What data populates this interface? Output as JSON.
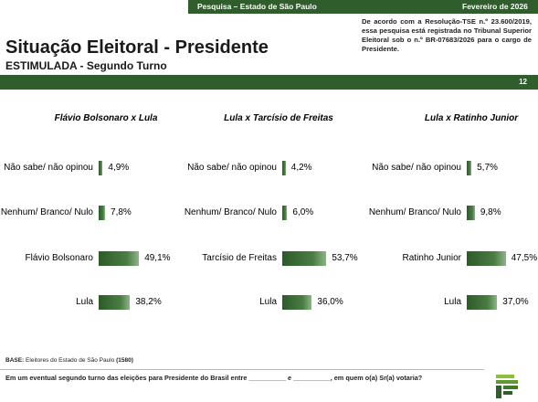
{
  "header": {
    "left": "Pesquisa – Estado de São Paulo",
    "right": "Fevereiro de 2026"
  },
  "disclaimer": "De acordo com a Resolução-TSE n.º 23.600/2019, essa pesquisa está registrada no Tribunal Superior Eleitoral sob o n.º BR-07683/2026 para o cargo de Presidente.",
  "title": "Situação Eleitoral - Presidente",
  "subtitle": "ESTIMULADA - Segundo Turno",
  "page_number": "12",
  "base": {
    "label": "BASE:",
    "text": "Eleitores do Estado de São Paulo",
    "count": "(1580)"
  },
  "question": "Em um eventual segundo turno das eleições para Presidente do Brasil entre __________ e __________, em quem o(a) Sr(a) votaria?",
  "colors": {
    "primary_green": "#2f5d2b"
  },
  "chart_data": [
    {
      "type": "bar",
      "title": "Flávio Bolsonaro x Lula",
      "categories": [
        "Não sabe/ não opinou",
        "Nenhum/ Branco/ Nulo",
        "Flávio Bolsonaro",
        "Lula"
      ],
      "values": [
        4.9,
        7.8,
        49.1,
        38.2
      ],
      "labels": [
        "4,9%",
        "7,8%",
        "49,1%",
        "38,2%"
      ]
    },
    {
      "type": "bar",
      "title": "Lula x Tarcísio de Freitas",
      "categories": [
        "Não sabe/ não opinou",
        "Nenhum/ Branco/ Nulo",
        "Tarcísio de Freitas",
        "Lula"
      ],
      "values": [
        4.2,
        6.0,
        53.7,
        36.0
      ],
      "labels": [
        "4,2%",
        "6,0%",
        "53,7%",
        "36,0%"
      ]
    },
    {
      "type": "bar",
      "title": "Lula x Ratinho Junior",
      "categories": [
        "Não sabe/ não opinou",
        "Nenhum/ Branco/ Nulo",
        "Ratinho Junior",
        "Lula"
      ],
      "values": [
        5.7,
        9.8,
        47.5,
        37.0
      ],
      "labels": [
        "5,7%",
        "9,8%",
        "47,5%",
        "37,0%"
      ]
    }
  ]
}
